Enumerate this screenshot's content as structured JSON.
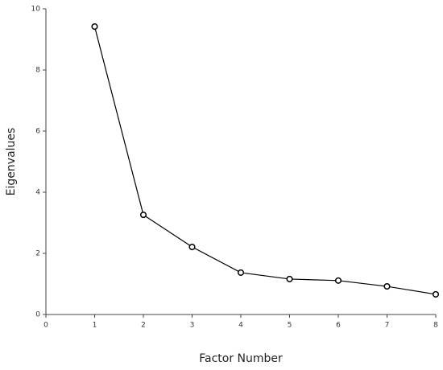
{
  "chart_data": {
    "type": "line",
    "x_label": "Factor Number",
    "y_label": "Eigenvalues",
    "x": [
      1,
      2,
      3,
      4,
      5,
      6,
      7,
      8
    ],
    "series": [
      {
        "name": "Eigenvalues",
        "color": "#000000",
        "values": [
          9.42,
          3.26,
          2.21,
          1.37,
          1.16,
          1.11,
          0.92,
          0.66
        ]
      }
    ],
    "xlim": [
      0,
      8
    ],
    "xticks": [
      0,
      1,
      2,
      3,
      4,
      5,
      6,
      7,
      8
    ],
    "ylim": [
      0,
      10
    ],
    "yticks": [
      0,
      2,
      4,
      6,
      8,
      10
    ],
    "grid": false,
    "markers": true
  }
}
